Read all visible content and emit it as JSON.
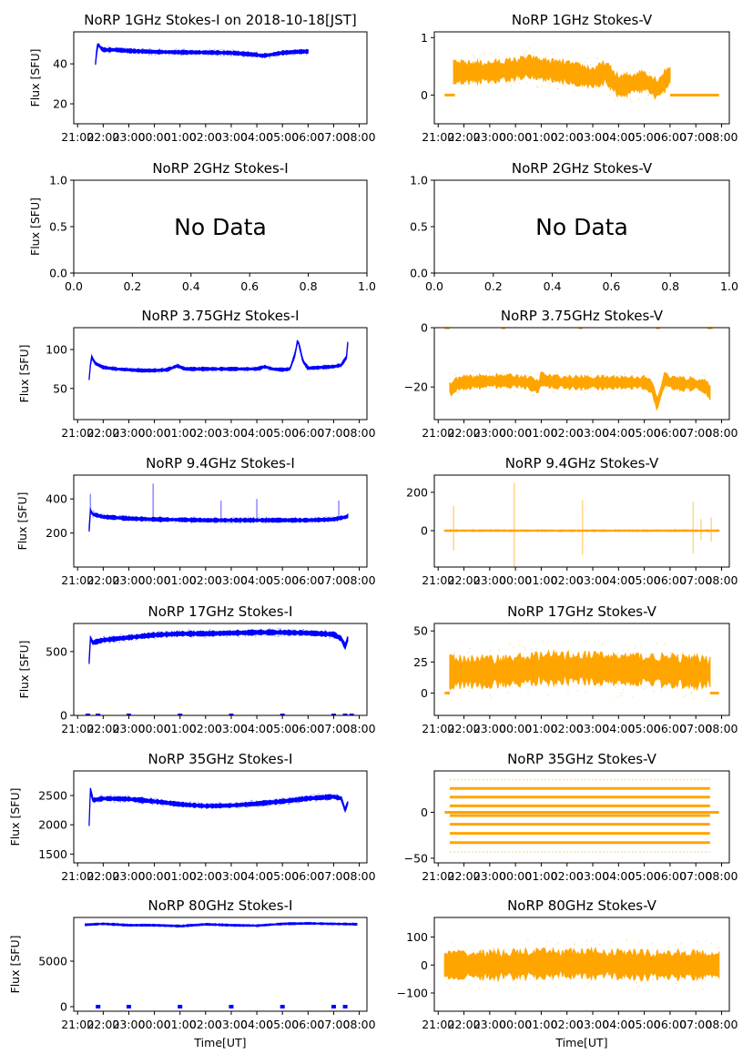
{
  "figure": {
    "colors": {
      "stokes_i": "#0000ff",
      "stokes_v": "#ffa500"
    }
  },
  "chart_data": [
    {
      "id": "p1i",
      "type": "scatter",
      "title": "NoRP 1GHz Stokes-I on 2018-10-18[JST]",
      "ylabel": "Flux [SFU]",
      "xlabel": "",
      "ylim": [
        10,
        56
      ],
      "yticks": [
        20,
        40
      ],
      "x_unit": "hours since 21:00 UT",
      "xlim": [
        -0.15,
        11.3
      ],
      "xticks": [
        "21:00",
        "22:00",
        "23:00",
        "00:00",
        "01:00",
        "02:00",
        "03:00",
        "04:00",
        "05:00",
        "06:00",
        "07:00",
        "08:00"
      ],
      "series": [
        {
          "name": "Stokes-I",
          "color": "#0000ff",
          "x": [
            0.7,
            0.75,
            0.8,
            0.9,
            1.0,
            1.5,
            2.0,
            3.0,
            4.0,
            5.0,
            6.0,
            6.5,
            7.0,
            7.2,
            7.5,
            8.0,
            8.5,
            9.0
          ],
          "y": [
            40,
            47,
            50,
            48,
            47,
            47,
            46.5,
            46,
            45.8,
            45.7,
            45.5,
            45,
            44.5,
            44,
            44.5,
            45.5,
            46,
            46.2
          ],
          "band": 1.5
        }
      ]
    },
    {
      "id": "p1v",
      "type": "scatter",
      "title": "NoRP 1GHz Stokes-V",
      "ylabel": "",
      "xlabel": "",
      "ylim": [
        -0.5,
        1.1
      ],
      "yticks": [
        0,
        1
      ],
      "xlim": [
        -0.15,
        11.3
      ],
      "xticks": [
        "21:00",
        "22:00",
        "23:00",
        "00:00",
        "01:00",
        "02:00",
        "03:00",
        "04:00",
        "05:00",
        "06:00",
        "07:00",
        "08:00"
      ],
      "series": [
        {
          "name": "Stokes-V",
          "color": "#ffa500",
          "x": [
            0.6,
            1.0,
            2.0,
            3.0,
            3.5,
            4.0,
            5.0,
            5.5,
            6.0,
            6.5,
            7.0,
            7.5,
            8.0,
            8.5,
            9.0
          ],
          "y": [
            0.4,
            0.4,
            0.4,
            0.45,
            0.5,
            0.45,
            0.4,
            0.35,
            0.3,
            0.4,
            0.15,
            0.2,
            0.25,
            0.1,
            0.35
          ],
          "band": 0.3
        },
        {
          "name": "Stokes-V zero segments",
          "color": "#ffa500",
          "segments": [
            [
              0.25,
              0.65
            ],
            [
              9.0,
              10.9
            ]
          ],
          "y": 0
        }
      ]
    },
    {
      "id": "p2i",
      "type": "scatter",
      "title": "NoRP 2GHz Stokes-I",
      "ylabel": "Flux [SFU]",
      "xlabel": "",
      "ylim": [
        0,
        1
      ],
      "yticks": [
        "0.0",
        "0.5",
        "1.0"
      ],
      "xlim": [
        0,
        1
      ],
      "xticks": [
        "0.0",
        "0.2",
        "0.4",
        "0.6",
        "0.8",
        "1.0"
      ],
      "annotation": "No Data",
      "series": []
    },
    {
      "id": "p2v",
      "type": "scatter",
      "title": "NoRP 2GHz Stokes-V",
      "ylabel": "",
      "xlabel": "",
      "ylim": [
        0,
        1
      ],
      "yticks": [
        "0.0",
        "0.5",
        "1.0"
      ],
      "xlim": [
        0,
        1
      ],
      "xticks": [
        "0.0",
        "0.2",
        "0.4",
        "0.6",
        "0.8",
        "1.0"
      ],
      "annotation": "No Data",
      "series": []
    },
    {
      "id": "p3i",
      "type": "scatter",
      "title": "NoRP 3.75GHz Stokes-I",
      "ylabel": "Flux [SFU]",
      "xlabel": "",
      "ylim": [
        10,
        128
      ],
      "yticks": [
        50,
        100
      ],
      "xlim": [
        -0.15,
        11.3
      ],
      "xticks": [
        "21:00",
        "22:00",
        "23:00",
        "00:00",
        "01:00",
        "02:00",
        "03:00",
        "04:00",
        "05:00",
        "06:00",
        "07:00",
        "08:00"
      ],
      "series": [
        {
          "name": "Stokes-I",
          "color": "#0000ff",
          "x": [
            0.45,
            0.5,
            0.55,
            0.7,
            1.0,
            1.5,
            2.0,
            2.5,
            3.0,
            3.5,
            3.9,
            4.2,
            4.5,
            5.0,
            6.0,
            7.0,
            7.3,
            7.6,
            8.0,
            8.3,
            8.5,
            8.6,
            8.8,
            9.0,
            9.5,
            10.0,
            10.3,
            10.5,
            10.55
          ],
          "y": [
            62,
            80,
            90,
            82,
            77,
            75,
            74,
            73,
            73,
            74,
            79,
            75,
            75,
            75,
            75,
            75,
            78,
            75,
            74,
            75,
            95,
            113,
            85,
            76,
            77,
            78,
            80,
            90,
            108
          ],
          "band": 3
        }
      ]
    },
    {
      "id": "p3v",
      "type": "scatter",
      "title": "NoRP 3.75GHz Stokes-V",
      "ylabel": "",
      "xlabel": "",
      "ylim": [
        -31,
        0
      ],
      "yticks": [
        -20,
        0
      ],
      "xlim": [
        -0.15,
        11.3
      ],
      "xticks": [
        "21:00",
        "22:00",
        "23:00",
        "00:00",
        "01:00",
        "02:00",
        "03:00",
        "04:00",
        "05:00",
        "06:00",
        "07:00",
        "08:00"
      ],
      "series": [
        {
          "name": "Stokes-V",
          "color": "#ffa500",
          "x": [
            0.45,
            0.5,
            0.7,
            1.0,
            2.0,
            3.0,
            3.5,
            3.9,
            4.0,
            4.2,
            5.0,
            6.0,
            7.0,
            8.0,
            8.3,
            8.5,
            8.6,
            8.8,
            9.0,
            9.5,
            10.0,
            10.4,
            10.55
          ],
          "y": [
            -20,
            -21,
            -19,
            -18.5,
            -18,
            -18,
            -18.5,
            -20,
            -17,
            -18,
            -18.5,
            -18.5,
            -18.5,
            -18.5,
            -20,
            -26,
            -23,
            -17,
            -18.5,
            -19,
            -19,
            -20,
            -22
          ],
          "band": 3.5
        },
        {
          "name": "Stokes-V zero segments",
          "color": "#ffa500",
          "segments": [
            [
              0.25,
              0.45
            ],
            [
              2.45,
              2.6
            ],
            [
              5.45,
              5.6
            ],
            [
              8.45,
              8.6
            ],
            [
              10.45,
              10.65
            ]
          ],
          "y": 0
        }
      ]
    },
    {
      "id": "p4i",
      "type": "scatter",
      "title": "NoRP 9.4GHz Stokes-I",
      "ylabel": "Flux [SFU]",
      "xlabel": "",
      "ylim": [
        0,
        540
      ],
      "yticks": [
        200,
        400
      ],
      "xlim": [
        -0.15,
        11.3
      ],
      "xticks": [
        "21:00",
        "22:00",
        "23:00",
        "00:00",
        "01:00",
        "02:00",
        "03:00",
        "04:00",
        "05:00",
        "06:00",
        "07:00",
        "08:00"
      ],
      "series": [
        {
          "name": "Stokes-I",
          "color": "#0000ff",
          "x": [
            0.45,
            0.5,
            0.6,
            1.0,
            2.0,
            3.0,
            4.0,
            5.0,
            6.0,
            7.0,
            8.0,
            9.0,
            10.0,
            10.5,
            10.55
          ],
          "y": [
            220,
            330,
            310,
            295,
            285,
            280,
            278,
            275,
            275,
            275,
            275,
            275,
            280,
            295,
            300
          ],
          "band": 18
        },
        {
          "name": "Stokes-I spikes",
          "color": "#0000ff",
          "x": [
            0.5,
            2.95,
            5.6,
            7.0,
            10.2
          ],
          "y": [
            430,
            490,
            390,
            400,
            390
          ]
        }
      ]
    },
    {
      "id": "p4v",
      "type": "scatter",
      "title": "NoRP 9.4GHz Stokes-V",
      "ylabel": "",
      "xlabel": "",
      "ylim": [
        -190,
        290
      ],
      "yticks": [
        0,
        200
      ],
      "xlim": [
        -0.15,
        11.3
      ],
      "xticks": [
        "21:00",
        "22:00",
        "23:00",
        "00:00",
        "01:00",
        "02:00",
        "03:00",
        "04:00",
        "05:00",
        "06:00",
        "07:00",
        "08:00"
      ],
      "series": [
        {
          "name": "Stokes-V",
          "color": "#ffa500",
          "x": [
            0.25,
            10.9
          ],
          "y": [
            0,
            0
          ],
          "band": 6
        },
        {
          "name": "Stokes-V spikes",
          "color": "#ffa500",
          "x": [
            0.6,
            2.95,
            5.6,
            9.9,
            10.2,
            10.6
          ],
          "y": [
            130,
            250,
            160,
            150,
            60,
            70
          ]
        }
      ]
    },
    {
      "id": "p5i",
      "type": "scatter",
      "title": "NoRP 17GHz Stokes-I",
      "ylabel": "Flux [SFU]",
      "xlabel": "",
      "ylim": [
        0,
        720
      ],
      "yticks": [
        0,
        500
      ],
      "xlim": [
        -0.15,
        11.3
      ],
      "xticks": [
        "21:00",
        "22:00",
        "23:00",
        "00:00",
        "01:00",
        "02:00",
        "03:00",
        "04:00",
        "05:00",
        "06:00",
        "07:00",
        "08:00"
      ],
      "series": [
        {
          "name": "Stokes-I",
          "color": "#0000ff",
          "x": [
            0.45,
            0.5,
            0.6,
            1.0,
            2.0,
            3.0,
            4.0,
            5.0,
            6.0,
            7.0,
            8.0,
            9.0,
            10.0,
            10.3,
            10.45,
            10.55
          ],
          "y": [
            420,
            600,
            570,
            590,
            610,
            630,
            640,
            640,
            645,
            650,
            650,
            645,
            635,
            600,
            540,
            600
          ],
          "band": 30
        },
        {
          "name": "Stokes-I zero points",
          "color": "#0000ff",
          "x": [
            0.4,
            0.8,
            2.0,
            4.0,
            6.0,
            8.0,
            10.0,
            10.45,
            10.7
          ],
          "y": [
            0,
            0,
            0,
            0,
            0,
            0,
            0,
            0,
            0
          ]
        }
      ]
    },
    {
      "id": "p5v",
      "type": "scatter",
      "title": "NoRP 17GHz Stokes-V",
      "ylabel": "",
      "xlabel": "",
      "ylim": [
        -18,
        56
      ],
      "yticks": [
        0,
        25,
        50
      ],
      "xlim": [
        -0.15,
        11.3
      ],
      "xticks": [
        "21:00",
        "22:00",
        "23:00",
        "00:00",
        "01:00",
        "02:00",
        "03:00",
        "04:00",
        "05:00",
        "06:00",
        "07:00",
        "08:00"
      ],
      "series": [
        {
          "name": "Stokes-V",
          "color": "#ffa500",
          "x": [
            0.45,
            1.0,
            2.0,
            3.0,
            4.0,
            5.0,
            6.0,
            7.0,
            8.0,
            9.0,
            10.0,
            10.55
          ],
          "y": [
            17,
            17,
            17,
            18,
            20,
            20,
            20,
            19,
            19,
            18,
            17,
            17
          ],
          "band": 20
        },
        {
          "name": "Stokes-V zero segments",
          "color": "#ffa500",
          "segments": [
            [
              0.25,
              0.45
            ],
            [
              10.55,
              10.9
            ]
          ],
          "y": 0
        }
      ]
    },
    {
      "id": "p6i",
      "type": "scatter",
      "title": "NoRP 35GHz Stokes-I",
      "ylabel": "Flux [SFU]",
      "xlabel": "",
      "ylim": [
        1350,
        2920
      ],
      "yticks": [
        1500,
        2000,
        2500
      ],
      "xlim": [
        -0.15,
        11.3
      ],
      "xticks": [
        "21:00",
        "22:00",
        "23:00",
        "00:00",
        "01:00",
        "02:00",
        "03:00",
        "04:00",
        "05:00",
        "06:00",
        "07:00",
        "08:00"
      ],
      "series": [
        {
          "name": "Stokes-I",
          "color": "#0000ff",
          "x": [
            0.45,
            0.5,
            0.6,
            1.0,
            2.0,
            3.0,
            4.0,
            5.0,
            6.0,
            7.0,
            8.0,
            9.0,
            10.0,
            10.3,
            10.45,
            10.55
          ],
          "y": [
            2000,
            2600,
            2420,
            2450,
            2440,
            2400,
            2350,
            2320,
            2330,
            2360,
            2400,
            2450,
            2480,
            2450,
            2250,
            2380
          ],
          "band": 60
        }
      ]
    },
    {
      "id": "p6v",
      "type": "scatter",
      "title": "NoRP 35GHz Stokes-V",
      "ylabel": "",
      "xlabel": "",
      "ylim": [
        -55,
        45
      ],
      "yticks": [
        -50,
        0
      ],
      "xlim": [
        -0.15,
        11.3
      ],
      "xticks": [
        "21:00",
        "22:00",
        "23:00",
        "00:00",
        "01:00",
        "02:00",
        "03:00",
        "04:00",
        "05:00",
        "06:00",
        "07:00",
        "08:00"
      ],
      "series": [
        {
          "name": "Stokes-V levels",
          "color": "#ffa500",
          "x_range": [
            0.45,
            10.55
          ],
          "levels": [
            35.5,
            26,
            16.5,
            7,
            -3.5,
            -13,
            -23,
            -33,
            -43
          ]
        }
      ]
    },
    {
      "id": "p7i",
      "type": "scatter",
      "title": "NoRP 80GHz Stokes-I",
      "ylabel": "Flux [SFU]",
      "xlabel": "Time[UT]",
      "ylim": [
        -500,
        9800
      ],
      "yticks": [
        0,
        5000
      ],
      "xlim": [
        -0.15,
        11.3
      ],
      "xticks": [
        "21:00",
        "22:00",
        "23:00",
        "00:00",
        "01:00",
        "02:00",
        "03:00",
        "04:00",
        "05:00",
        "06:00",
        "07:00",
        "08:00"
      ],
      "series": [
        {
          "name": "Stokes-I",
          "color": "#0000ff",
          "x": [
            0.3,
            1.0,
            2.0,
            3.0,
            4.0,
            5.0,
            6.0,
            7.0,
            8.0,
            9.0,
            10.0,
            10.9
          ],
          "y": [
            9000,
            9100,
            8950,
            8950,
            8850,
            9050,
            8950,
            8900,
            9100,
            9150,
            9100,
            9050
          ],
          "band": 150
        },
        {
          "name": "Stokes-I zero points",
          "color": "#0000ff",
          "x": [
            0.8,
            2.0,
            4.0,
            6.0,
            8.0,
            10.0,
            10.45
          ],
          "y": [
            0,
            0,
            0,
            0,
            0,
            0,
            0
          ]
        }
      ]
    },
    {
      "id": "p7v",
      "type": "scatter",
      "title": "NoRP 80GHz Stokes-V",
      "ylabel": "",
      "xlabel": "Time[UT]",
      "ylim": [
        -165,
        170
      ],
      "yticks": [
        -100,
        0,
        100
      ],
      "xlim": [
        -0.15,
        11.3
      ],
      "xticks": [
        "21:00",
        "22:00",
        "23:00",
        "00:00",
        "01:00",
        "02:00",
        "03:00",
        "04:00",
        "05:00",
        "06:00",
        "07:00",
        "08:00"
      ],
      "series": [
        {
          "name": "Stokes-V",
          "color": "#ffa500",
          "x": [
            0.25,
            2.0,
            4.0,
            6.0,
            8.0,
            10.0,
            10.9
          ],
          "y": [
            0,
            0,
            5,
            5,
            0,
            0,
            0
          ],
          "band": 80
        }
      ]
    }
  ]
}
